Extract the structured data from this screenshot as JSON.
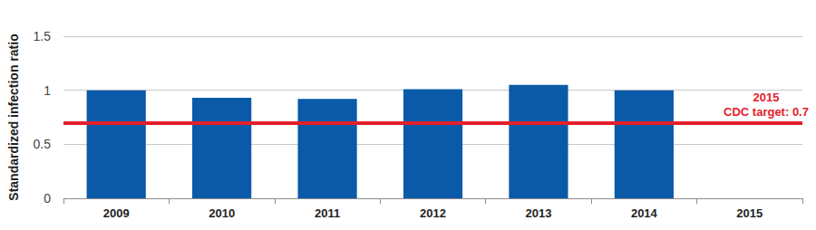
{
  "chart_data": {
    "type": "bar",
    "y_label": "Standardized infection ratio",
    "categories": [
      "2009",
      "2010",
      "2011",
      "2012",
      "2013",
      "2014",
      "2015"
    ],
    "values": [
      1.0,
      0.93,
      0.92,
      1.01,
      1.05,
      1.0,
      null
    ],
    "color": "#0a5aa8",
    "ylim": [
      0,
      1.5
    ],
    "yticks": [
      0,
      0.5,
      1,
      1.5
    ],
    "grid": true,
    "annotations": [
      {
        "type": "hline",
        "y": 0.7,
        "text": [
          "2015",
          "CDC target: 0.7"
        ],
        "color": "#e3202a"
      }
    ]
  }
}
